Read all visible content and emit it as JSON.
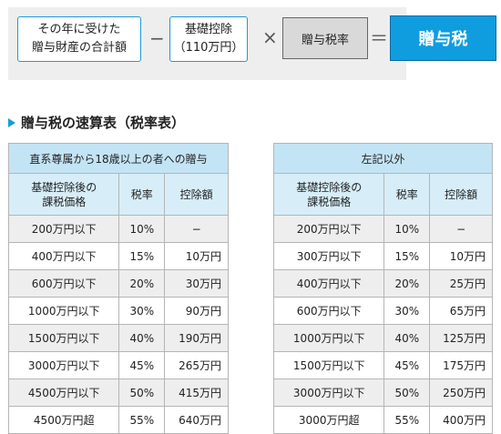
{
  "formula": {
    "box1_line1": "その年に受けた",
    "box1_line2": "贈与財産の合計額",
    "minus": "−",
    "box2_line1": "基礎控除",
    "box2_line2": "（110万円）",
    "times": "×",
    "rate": "贈与税率",
    "equals": "＝",
    "result": "贈与税"
  },
  "section_title": "贈与税の速算表（税率表）",
  "table_left": {
    "caption": "直系尊属から18歳以上の者への贈与",
    "headers": [
      "基礎控除後の\n課税価格",
      "税率",
      "控除額"
    ],
    "rows": [
      [
        "200万円以下",
        "10%",
        "−"
      ],
      [
        "400万円以下",
        "15%",
        "10万円"
      ],
      [
        "600万円以下",
        "20%",
        "30万円"
      ],
      [
        "1000万円以下",
        "30%",
        "90万円"
      ],
      [
        "1500万円以下",
        "40%",
        "190万円"
      ],
      [
        "3000万円以下",
        "45%",
        "265万円"
      ],
      [
        "4500万円以下",
        "50%",
        "415万円"
      ],
      [
        "4500万円超",
        "55%",
        "640万円"
      ]
    ]
  },
  "table_right": {
    "caption": "左記以外",
    "headers": [
      "基礎控除後の\n課税価格",
      "税率",
      "控除額"
    ],
    "rows": [
      [
        "200万円以下",
        "10%",
        "−"
      ],
      [
        "300万円以下",
        "15%",
        "10万円"
      ],
      [
        "400万円以下",
        "20%",
        "25万円"
      ],
      [
        "600万円以下",
        "30%",
        "65万円"
      ],
      [
        "1000万円以下",
        "40%",
        "125万円"
      ],
      [
        "1500万円以下",
        "45%",
        "175万円"
      ],
      [
        "3000万円以下",
        "50%",
        "250万円"
      ],
      [
        "3000万円超",
        "55%",
        "400万円"
      ]
    ]
  },
  "colors": {
    "accent": "#1a9bd7",
    "result_fill": "#0f9de0",
    "caption_fill": "#c3e4f5",
    "header_fill": "#d7eef9",
    "stripe": "#eeeeee"
  }
}
